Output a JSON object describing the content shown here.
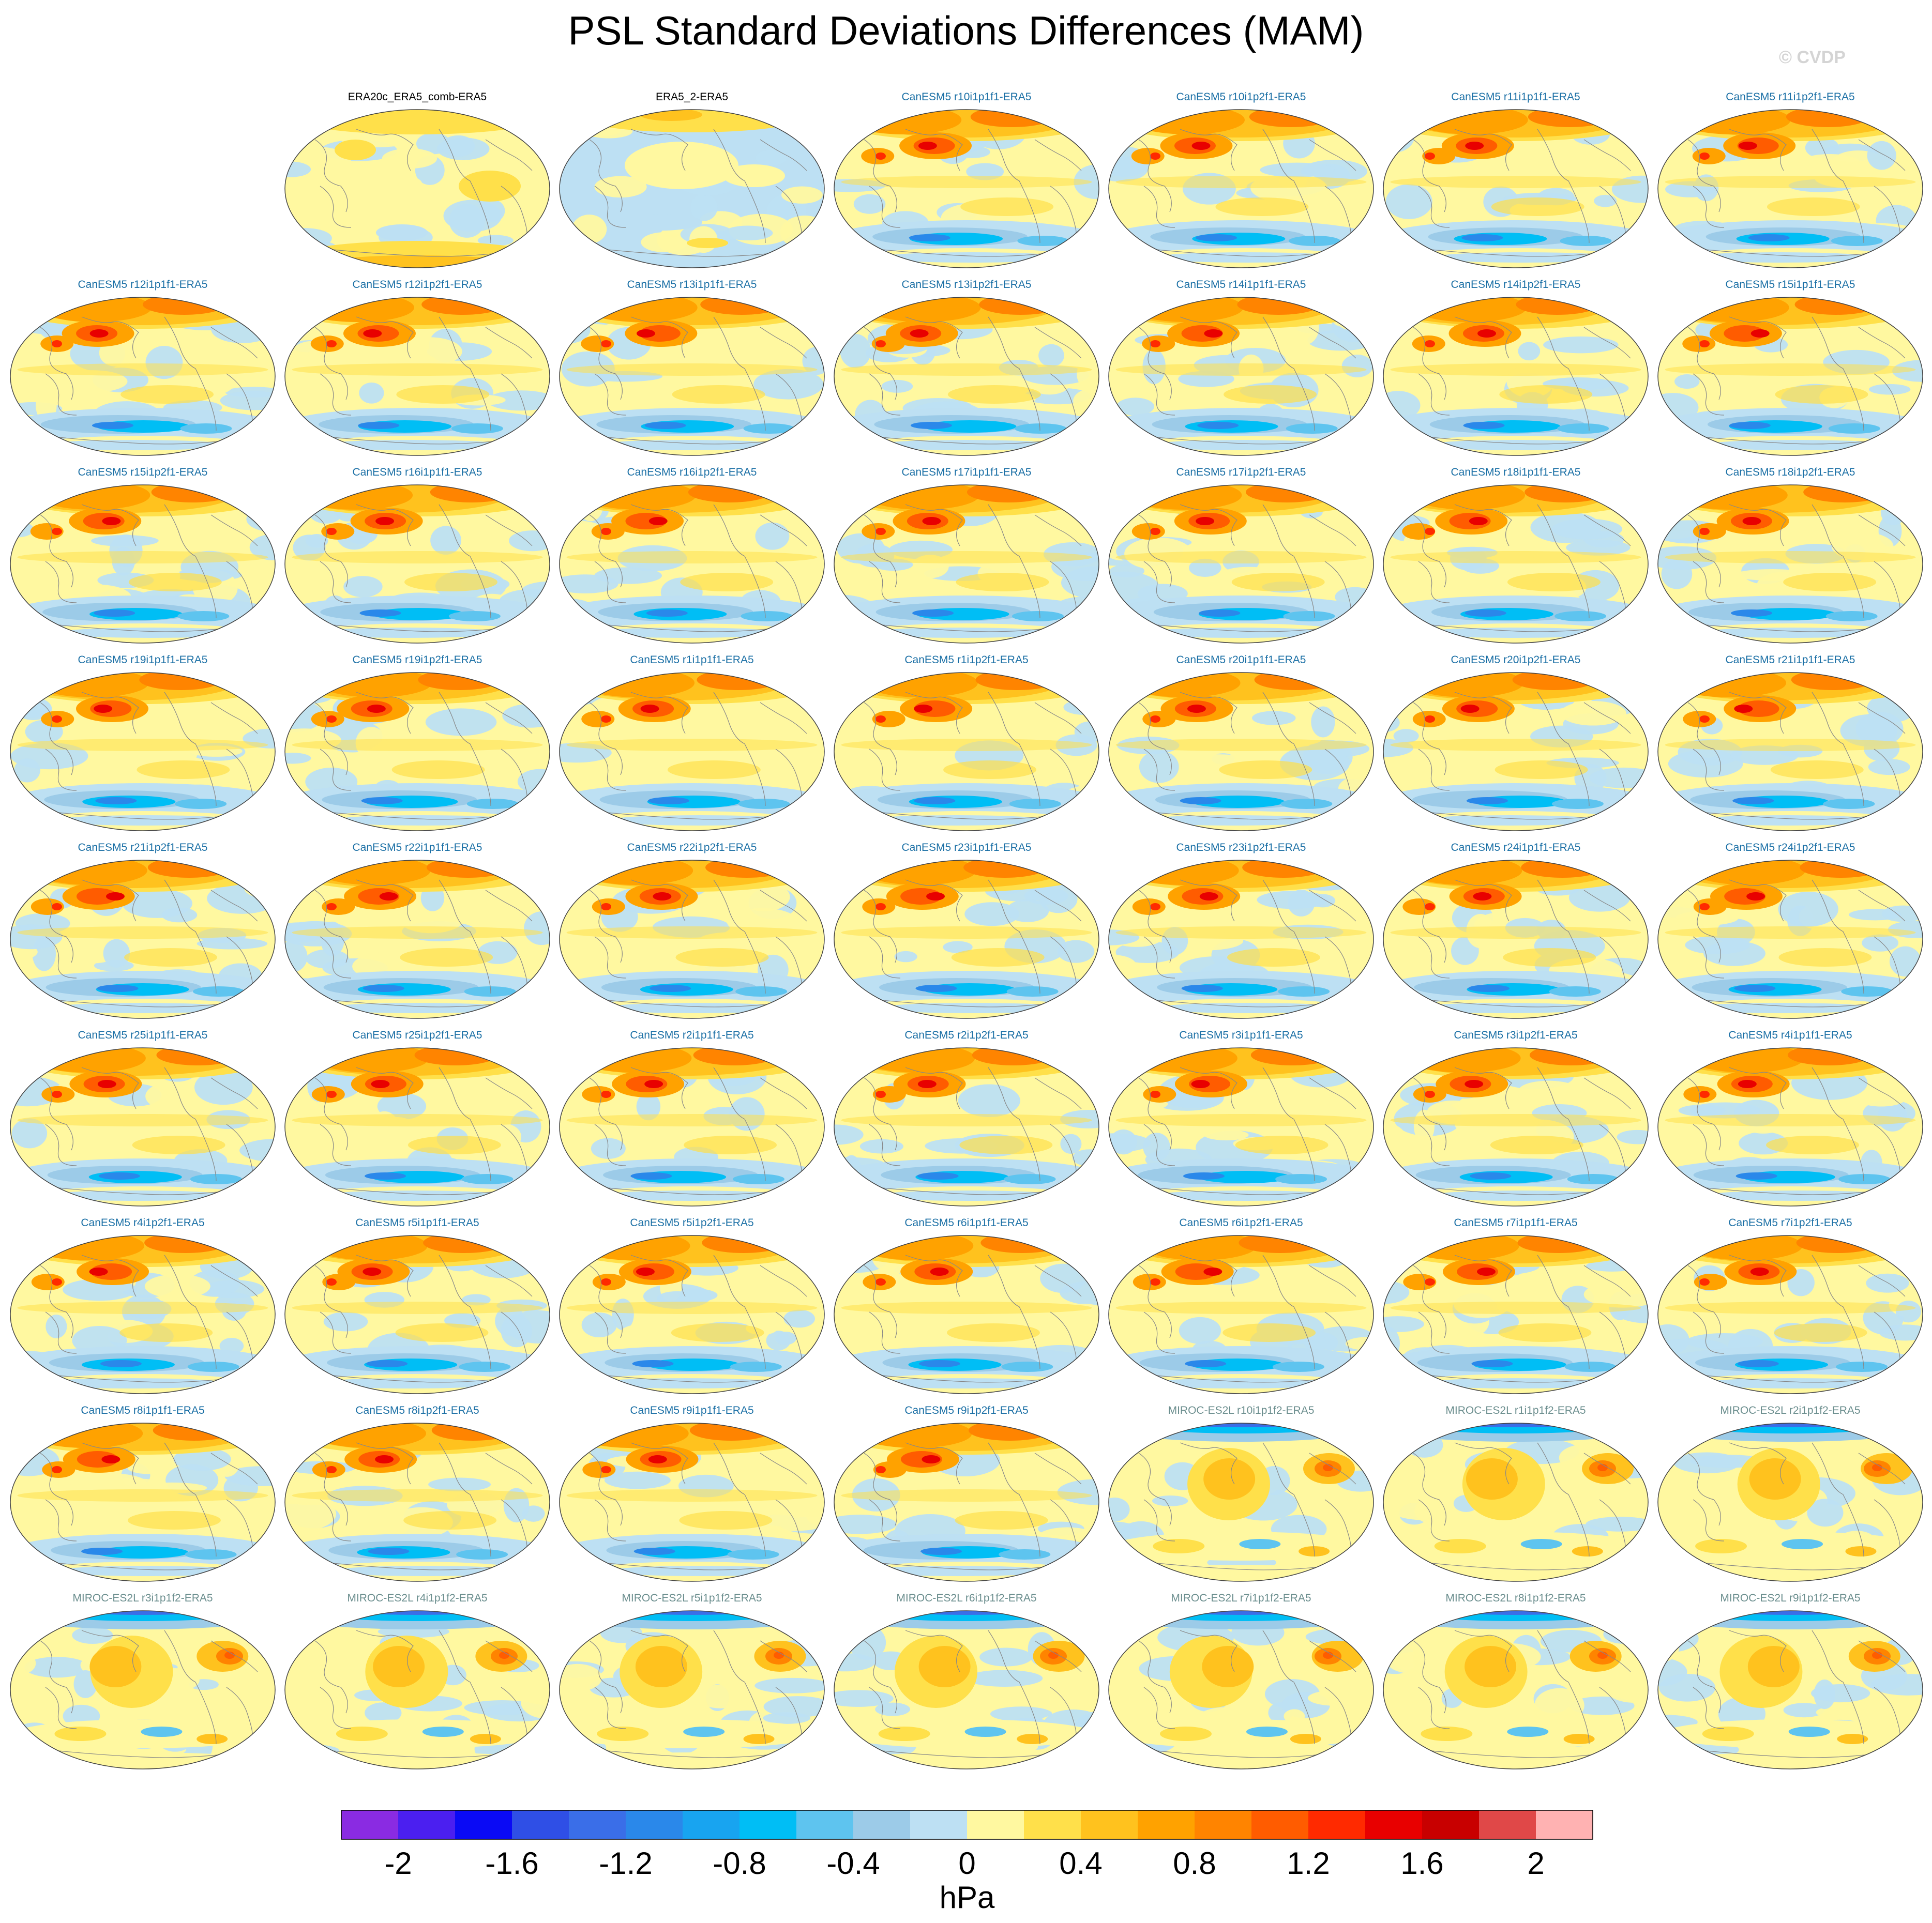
{
  "title": "PSL Standard Deviations Differences (MAM)",
  "watermark": "© CVDP",
  "colors": {
    "obs_label": "#000000",
    "canesm_label": "#1a6fa5",
    "miroc_label": "#6b8e8e",
    "coastline": "#888888",
    "map_outline": "#444444"
  },
  "colorbar": {
    "units": "hPa",
    "tick_labels": [
      "-2",
      "-1.6",
      "-1.2",
      "-0.8",
      "-0.4",
      "0",
      "0.4",
      "0.8",
      "1.2",
      "1.6",
      "2"
    ],
    "colors": [
      "#8a2be2",
      "#4b1ff0",
      "#0a0af5",
      "#2f4fe6",
      "#3a6ee8",
      "#2a88ea",
      "#18a4f0",
      "#00bef5",
      "#5ec4ef",
      "#9ccbe8",
      "#bde0f3",
      "#fff8a0",
      "#ffe04a",
      "#ffc21e",
      "#ffa200",
      "#ff8400",
      "#ff5c00",
      "#ff2a00",
      "#e80000",
      "#c80000",
      "#e04848",
      "#ffb2b2"
    ]
  },
  "panels": [
    {
      "label": "ERA20c_ERA5_comb-ERA5",
      "group": "obs",
      "pattern": "obs1"
    },
    {
      "label": "ERA5_2-ERA5",
      "group": "obs",
      "pattern": "obs2"
    },
    {
      "label": "CanESM5 r10i1p1f1-ERA5",
      "group": "canesm",
      "pattern": "can"
    },
    {
      "label": "CanESM5 r10i1p2f1-ERA5",
      "group": "canesm",
      "pattern": "can"
    },
    {
      "label": "CanESM5 r11i1p1f1-ERA5",
      "group": "canesm",
      "pattern": "can"
    },
    {
      "label": "CanESM5 r11i1p2f1-ERA5",
      "group": "canesm",
      "pattern": "can"
    },
    {
      "label": "CanESM5 r12i1p1f1-ERA5",
      "group": "canesm",
      "pattern": "can"
    },
    {
      "label": "CanESM5 r12i1p2f1-ERA5",
      "group": "canesm",
      "pattern": "can"
    },
    {
      "label": "CanESM5 r13i1p1f1-ERA5",
      "group": "canesm",
      "pattern": "can"
    },
    {
      "label": "CanESM5 r13i1p2f1-ERA5",
      "group": "canesm",
      "pattern": "can"
    },
    {
      "label": "CanESM5 r14i1p1f1-ERA5",
      "group": "canesm",
      "pattern": "can"
    },
    {
      "label": "CanESM5 r14i1p2f1-ERA5",
      "group": "canesm",
      "pattern": "can"
    },
    {
      "label": "CanESM5 r15i1p1f1-ERA5",
      "group": "canesm",
      "pattern": "can"
    },
    {
      "label": "CanESM5 r15i1p2f1-ERA5",
      "group": "canesm",
      "pattern": "can"
    },
    {
      "label": "CanESM5 r16i1p1f1-ERA5",
      "group": "canesm",
      "pattern": "can"
    },
    {
      "label": "CanESM5 r16i1p2f1-ERA5",
      "group": "canesm",
      "pattern": "can"
    },
    {
      "label": "CanESM5 r17i1p1f1-ERA5",
      "group": "canesm",
      "pattern": "can"
    },
    {
      "label": "CanESM5 r17i1p2f1-ERA5",
      "group": "canesm",
      "pattern": "can"
    },
    {
      "label": "CanESM5 r18i1p1f1-ERA5",
      "group": "canesm",
      "pattern": "can"
    },
    {
      "label": "CanESM5 r18i1p2f1-ERA5",
      "group": "canesm",
      "pattern": "can"
    },
    {
      "label": "CanESM5 r19i1p1f1-ERA5",
      "group": "canesm",
      "pattern": "can"
    },
    {
      "label": "CanESM5 r19i1p2f1-ERA5",
      "group": "canesm",
      "pattern": "can"
    },
    {
      "label": "CanESM5 r1i1p1f1-ERA5",
      "group": "canesm",
      "pattern": "can"
    },
    {
      "label": "CanESM5 r1i1p2f1-ERA5",
      "group": "canesm",
      "pattern": "can"
    },
    {
      "label": "CanESM5 r20i1p1f1-ERA5",
      "group": "canesm",
      "pattern": "can"
    },
    {
      "label": "CanESM5 r20i1p2f1-ERA5",
      "group": "canesm",
      "pattern": "can"
    },
    {
      "label": "CanESM5 r21i1p1f1-ERA5",
      "group": "canesm",
      "pattern": "can"
    },
    {
      "label": "CanESM5 r21i1p2f1-ERA5",
      "group": "canesm",
      "pattern": "can"
    },
    {
      "label": "CanESM5 r22i1p1f1-ERA5",
      "group": "canesm",
      "pattern": "can"
    },
    {
      "label": "CanESM5 r22i1p2f1-ERA5",
      "group": "canesm",
      "pattern": "can"
    },
    {
      "label": "CanESM5 r23i1p1f1-ERA5",
      "group": "canesm",
      "pattern": "can"
    },
    {
      "label": "CanESM5 r23i1p2f1-ERA5",
      "group": "canesm",
      "pattern": "can"
    },
    {
      "label": "CanESM5 r24i1p1f1-ERA5",
      "group": "canesm",
      "pattern": "can"
    },
    {
      "label": "CanESM5 r24i1p2f1-ERA5",
      "group": "canesm",
      "pattern": "can"
    },
    {
      "label": "CanESM5 r25i1p1f1-ERA5",
      "group": "canesm",
      "pattern": "can"
    },
    {
      "label": "CanESM5 r25i1p2f1-ERA5",
      "group": "canesm",
      "pattern": "can"
    },
    {
      "label": "CanESM5 r2i1p1f1-ERA5",
      "group": "canesm",
      "pattern": "can"
    },
    {
      "label": "CanESM5 r2i1p2f1-ERA5",
      "group": "canesm",
      "pattern": "can"
    },
    {
      "label": "CanESM5 r3i1p1f1-ERA5",
      "group": "canesm",
      "pattern": "can"
    },
    {
      "label": "CanESM5 r3i1p2f1-ERA5",
      "group": "canesm",
      "pattern": "can"
    },
    {
      "label": "CanESM5 r4i1p1f1-ERA5",
      "group": "canesm",
      "pattern": "can"
    },
    {
      "label": "CanESM5 r4i1p2f1-ERA5",
      "group": "canesm",
      "pattern": "can"
    },
    {
      "label": "CanESM5 r5i1p1f1-ERA5",
      "group": "canesm",
      "pattern": "can"
    },
    {
      "label": "CanESM5 r5i1p2f1-ERA5",
      "group": "canesm",
      "pattern": "can"
    },
    {
      "label": "CanESM5 r6i1p1f1-ERA5",
      "group": "canesm",
      "pattern": "can"
    },
    {
      "label": "CanESM5 r6i1p2f1-ERA5",
      "group": "canesm",
      "pattern": "can"
    },
    {
      "label": "CanESM5 r7i1p1f1-ERA5",
      "group": "canesm",
      "pattern": "can"
    },
    {
      "label": "CanESM5 r7i1p2f1-ERA5",
      "group": "canesm",
      "pattern": "can"
    },
    {
      "label": "CanESM5 r8i1p1f1-ERA5",
      "group": "canesm",
      "pattern": "can"
    },
    {
      "label": "CanESM5 r8i1p2f1-ERA5",
      "group": "canesm",
      "pattern": "can"
    },
    {
      "label": "CanESM5 r9i1p1f1-ERA5",
      "group": "canesm",
      "pattern": "can"
    },
    {
      "label": "CanESM5 r9i1p2f1-ERA5",
      "group": "canesm",
      "pattern": "can"
    },
    {
      "label": "MIROC-ES2L r10i1p1f2-ERA5",
      "group": "miroc",
      "pattern": "miroc"
    },
    {
      "label": "MIROC-ES2L r1i1p1f2-ERA5",
      "group": "miroc",
      "pattern": "miroc"
    },
    {
      "label": "MIROC-ES2L r2i1p1f2-ERA5",
      "group": "miroc",
      "pattern": "miroc"
    },
    {
      "label": "MIROC-ES2L r3i1p1f2-ERA5",
      "group": "miroc",
      "pattern": "miroc"
    },
    {
      "label": "MIROC-ES2L r4i1p1f2-ERA5",
      "group": "miroc",
      "pattern": "miroc"
    },
    {
      "label": "MIROC-ES2L r5i1p1f2-ERA5",
      "group": "miroc",
      "pattern": "miroc"
    },
    {
      "label": "MIROC-ES2L r6i1p1f2-ERA5",
      "group": "miroc",
      "pattern": "miroc"
    },
    {
      "label": "MIROC-ES2L r7i1p1f2-ERA5",
      "group": "miroc",
      "pattern": "miroc"
    },
    {
      "label": "MIROC-ES2L r8i1p1f2-ERA5",
      "group": "miroc",
      "pattern": "miroc"
    },
    {
      "label": "MIROC-ES2L r9i1p1f2-ERA5",
      "group": "miroc",
      "pattern": "miroc"
    }
  ]
}
